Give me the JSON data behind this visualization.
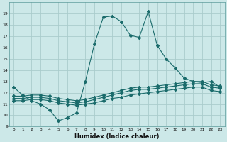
{
  "xlabel": "Humidex (Indice chaleur)",
  "x": [
    0,
    1,
    2,
    3,
    4,
    5,
    6,
    7,
    8,
    9,
    10,
    11,
    12,
    13,
    14,
    15,
    16,
    17,
    18,
    19,
    20,
    21,
    22,
    23
  ],
  "line1": [
    12.5,
    11.8,
    11.3,
    11.0,
    10.5,
    9.5,
    9.8,
    10.2,
    13.0,
    16.3,
    18.7,
    18.8,
    18.3,
    17.1,
    16.9,
    19.2,
    16.2,
    15.0,
    14.2,
    13.3,
    13.0,
    12.9,
    13.0,
    12.5
  ],
  "line2": [
    11.3,
    11.3,
    11.4,
    11.4,
    11.3,
    11.1,
    11.0,
    10.9,
    11.0,
    11.1,
    11.3,
    11.5,
    11.6,
    11.8,
    11.9,
    12.0,
    12.1,
    12.2,
    12.3,
    12.4,
    12.5,
    12.5,
    12.2,
    12.1
  ],
  "line3": [
    11.5,
    11.5,
    11.6,
    11.6,
    11.5,
    11.3,
    11.2,
    11.1,
    11.2,
    11.4,
    11.6,
    11.8,
    12.0,
    12.2,
    12.3,
    12.3,
    12.4,
    12.5,
    12.6,
    12.7,
    12.8,
    12.8,
    12.5,
    12.4
  ],
  "line4": [
    11.7,
    11.7,
    11.8,
    11.8,
    11.7,
    11.5,
    11.4,
    11.3,
    11.4,
    11.6,
    11.8,
    12.0,
    12.2,
    12.4,
    12.5,
    12.5,
    12.6,
    12.7,
    12.8,
    12.9,
    13.0,
    13.0,
    12.7,
    12.6
  ],
  "line_color": "#1a6b6b",
  "bg_color": "#cce8e8",
  "grid_color": "#aacccc",
  "ylim": [
    9,
    20
  ],
  "xlim": [
    -0.5,
    23.5
  ],
  "yticks": [
    9,
    10,
    11,
    12,
    13,
    14,
    15,
    16,
    17,
    18,
    19
  ],
  "xticks": [
    0,
    1,
    2,
    3,
    4,
    5,
    6,
    7,
    8,
    9,
    10,
    11,
    12,
    13,
    14,
    15,
    16,
    17,
    18,
    19,
    20,
    21,
    22,
    23
  ]
}
